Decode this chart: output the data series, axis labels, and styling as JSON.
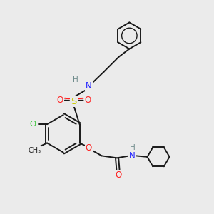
{
  "bg_color": "#ebebeb",
  "bond_color": "#1a1a1a",
  "bond_width": 1.4,
  "text_colors": {
    "C": "#1a1a1a",
    "H": "#6e8b8b",
    "N": "#2020ff",
    "O": "#ff2020",
    "S": "#cccc00",
    "Cl": "#00bb00"
  },
  "font_size": 7.5
}
